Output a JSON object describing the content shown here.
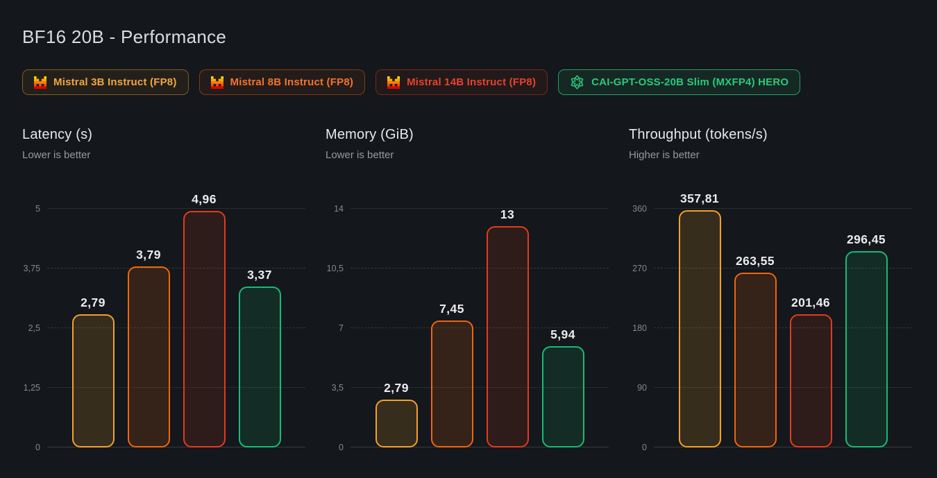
{
  "page": {
    "title": "BF16 20B - Performance",
    "background": "#14171b"
  },
  "legend": [
    {
      "label": "Mistral 3B Instruct (FP8)",
      "icon": "mistral-logo",
      "text_color": "#F2A53C",
      "border_color": "rgba(245,161,43,0.45)",
      "bg_color": "rgba(245,161,43,0.07)"
    },
    {
      "label": "Mistral 8B Instruct (FP8)",
      "icon": "mistral-logo",
      "text_color": "#F4732B",
      "border_color": "rgba(240,102,14,0.45)",
      "bg_color": "rgba(240,102,14,0.07)"
    },
    {
      "label": "Mistral 14B Instruct (FP8)",
      "icon": "mistral-logo",
      "text_color": "#E8422B",
      "border_color": "rgba(226,59,30,0.45)",
      "bg_color": "rgba(226,59,30,0.07)"
    },
    {
      "label": "CAI-GPT-OSS-20B Slim (MXFP4) HERO",
      "icon": "snowflake-icon",
      "text_color": "#2BC97A",
      "border_color": "rgba(43,201,122,0.75)",
      "bg_color": "rgba(43,201,122,0.10)"
    }
  ],
  "series_style": [
    {
      "name": "mistral-3b-instruct-fp8",
      "color": "#F5A12B",
      "fill": "rgba(245,161,43,0.16)"
    },
    {
      "name": "mistral-8b-instruct-fp8",
      "color": "#F0660E",
      "fill": "rgba(240,102,14,0.15)"
    },
    {
      "name": "mistral-14b-instruct-fp8",
      "color": "#E23B1E",
      "fill": "rgba(226,59,30,0.13)"
    },
    {
      "name": "cai-gpt-oss-20b-slim",
      "color": "#16BD74",
      "fill": "rgba(22,189,116,0.13)"
    }
  ],
  "chart_data": [
    {
      "type": "bar",
      "title": "Latency (s)",
      "subtitle": "Lower is better",
      "categories": [
        "Mistral 3B Instruct (FP8)",
        "Mistral 8B Instruct (FP8)",
        "Mistral 14B Instruct (FP8)",
        "CAI-GPT-OSS-20B Slim (MXFP4) HERO"
      ],
      "values": [
        2.79,
        3.79,
        4.96,
        3.37
      ],
      "value_labels": [
        "2,79",
        "3,79",
        "4,96",
        "3,37"
      ],
      "ylim": [
        0,
        5
      ],
      "yticks": [
        "0",
        "1,25",
        "2,5",
        "3,75",
        "5"
      ],
      "grid": "horizontal",
      "legend_position": "none"
    },
    {
      "type": "bar",
      "title": "Memory (GiB)",
      "subtitle": "Lower is better",
      "categories": [
        "Mistral 3B Instruct (FP8)",
        "Mistral 8B Instruct (FP8)",
        "Mistral 14B Instruct (FP8)",
        "CAI-GPT-OSS-20B Slim (MXFP4) HERO"
      ],
      "values": [
        2.79,
        7.45,
        13,
        5.94
      ],
      "value_labels": [
        "2,79",
        "7,45",
        "13",
        "5,94"
      ],
      "ylim": [
        0,
        14
      ],
      "yticks": [
        "0",
        "3,5",
        "7",
        "10,5",
        "14"
      ],
      "grid": "horizontal",
      "legend_position": "none"
    },
    {
      "type": "bar",
      "title": "Throughput (tokens/s)",
      "subtitle": "Higher is better",
      "categories": [
        "Mistral 3B Instruct (FP8)",
        "Mistral 8B Instruct (FP8)",
        "Mistral 14B Instruct (FP8)",
        "CAI-GPT-OSS-20B Slim (MXFP4) HERO"
      ],
      "values": [
        357.81,
        263.55,
        201.46,
        296.45
      ],
      "value_labels": [
        "357,81",
        "263,55",
        "201,46",
        "296,45"
      ],
      "ylim": [
        0,
        360
      ],
      "yticks": [
        "0",
        "90",
        "180",
        "270",
        "360"
      ],
      "grid": "horizontal",
      "legend_position": "none"
    }
  ]
}
